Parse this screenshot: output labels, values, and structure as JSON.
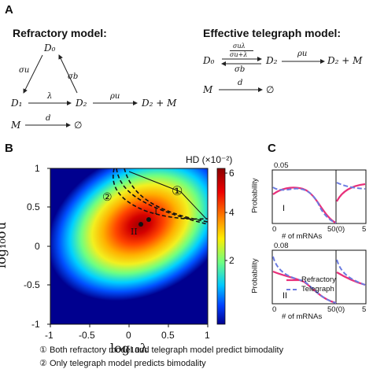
{
  "panel_a": {
    "letter": "A",
    "refractory": {
      "title": "Refractory model:",
      "nodes": {
        "d0": "D₀",
        "d1": "D₁",
        "d2": "D₂",
        "product": "D₂ + M",
        "m": "M",
        "empty": "∅"
      },
      "rates": {
        "sigma_u": "σu",
        "sigma_b": "σb",
        "lambda": "λ",
        "rho_u": "ρu",
        "d": "d"
      }
    },
    "telegraph": {
      "title": "Effective telegraph model:",
      "nodes": {
        "d0": "D₀",
        "d2": "D₂",
        "product": "D₂ + M",
        "m": "M",
        "empty": "∅"
      },
      "rates": {
        "forward_num": "σuλ",
        "forward_den": "σu+λ",
        "sigma_b": "σb",
        "rho_u": "ρu",
        "d": "d"
      }
    }
  },
  "panel_b": {
    "letter": "B",
    "colorbar_title": "HD (×10⁻²)",
    "colorbar_ticks": [
      "6",
      "4",
      "2"
    ],
    "xlabel": "log₁₀λ",
    "ylabel": "log₁₀σu",
    "xticks": [
      "-1",
      "-0.5",
      "0",
      "0.5",
      "1"
    ],
    "yticks": [
      "1",
      "0.5",
      "0",
      "-0.5",
      "-1"
    ],
    "region_labels": {
      "one": "①",
      "two": "②",
      "I": "I",
      "II": "II"
    },
    "colors": {
      "peak": "#b00000",
      "mid": "#ffd000",
      "low": "#00c8ff",
      "base": "#00008f"
    }
  },
  "panel_c": {
    "letter": "C",
    "top": {
      "ymax": "0.05",
      "ylabel": "Probability",
      "xlabel": "# of mRNAs",
      "x0": "0",
      "x50": "50(0)",
      "x5": "5",
      "roman": "I"
    },
    "bottom": {
      "ymax": "0.08",
      "ylabel": "Probability",
      "xlabel": "# of mRNAs",
      "x0": "0",
      "x50": "50(0)",
      "x5": "5",
      "roman": "II"
    },
    "legend": {
      "refractory": "Refractory",
      "telegraph": "Telegraph"
    },
    "colors": {
      "refractory": "#e8307a",
      "telegraph": "#6b7be0"
    }
  },
  "notes": [
    {
      "mark": "①",
      "text": "Both refractory model and telegraph model predict bimodality"
    },
    {
      "mark": "②",
      "text": "Only telegraph model predicts bimodality"
    }
  ],
  "chart_data": [
    {
      "type": "heatmap",
      "title": "",
      "xlabel": "log10λ",
      "ylabel": "log10σu",
      "xlim": [
        -1,
        1
      ],
      "ylim": [
        -1,
        1
      ],
      "colorbar": {
        "label": "HD (×10^-2)",
        "range": [
          0.5,
          6.2
        ],
        "ticks": [
          2,
          4,
          6
        ]
      },
      "peak": {
        "x": 0.15,
        "y": 0.3,
        "value": 6
      },
      "marked_points": [
        {
          "label": "I",
          "x": 0.25,
          "y": 0.2
        },
        {
          "label": "II",
          "x": 0.1,
          "y": 0.15
        }
      ]
    },
    {
      "type": "line",
      "title": "",
      "xlabel": "# of mRNAs",
      "ylabel": "Probability",
      "ylim": [
        0,
        0.05
      ],
      "series": [
        {
          "name": "Refractory",
          "x": [
            0,
            5,
            10,
            15,
            20,
            25,
            30,
            35,
            40,
            45,
            50
          ],
          "values": [
            0.03,
            0.037,
            0.04,
            0.041,
            0.04,
            0.036,
            0.028,
            0.018,
            0.009,
            0.003,
            0.001
          ]
        },
        {
          "name": "Telegraph",
          "x": [
            0,
            5,
            10,
            15,
            20,
            25,
            30,
            35,
            40,
            45,
            50
          ],
          "values": [
            0.036,
            0.03,
            0.031,
            0.034,
            0.035,
            0.033,
            0.027,
            0.018,
            0.009,
            0.003,
            0.001
          ]
        }
      ]
    },
    {
      "type": "line",
      "title": "",
      "xlabel": "# of mRNAs",
      "ylabel": "Probability",
      "ylim": [
        0,
        0.08
      ],
      "series": [
        {
          "name": "Refractory",
          "x": [
            0,
            5,
            10,
            15,
            20,
            25,
            30,
            35,
            40,
            45,
            50
          ],
          "values": [
            0.045,
            0.035,
            0.03,
            0.026,
            0.02,
            0.013,
            0.006,
            0.002,
            0.0008,
            0.0003,
            0.0001
          ]
        },
        {
          "name": "Telegraph",
          "x": [
            0,
            5,
            10,
            15,
            20,
            25,
            30,
            35,
            40,
            45,
            50
          ],
          "values": [
            0.06,
            0.034,
            0.029,
            0.026,
            0.02,
            0.013,
            0.006,
            0.002,
            0.0008,
            0.0003,
            0.0001
          ]
        }
      ]
    }
  ]
}
